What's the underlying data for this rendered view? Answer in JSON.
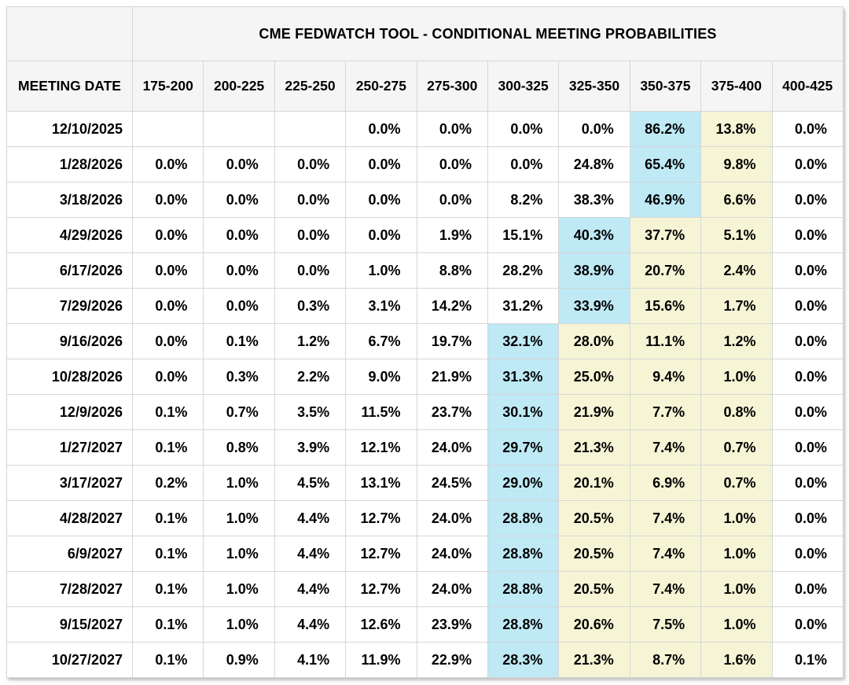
{
  "page": {
    "background": "#ffffff"
  },
  "colors": {
    "blue_highlight": "#bee9f5",
    "yellow_highlight": "#f5f5d6",
    "header_background": "#f5f5f5",
    "grid_border": "#d6d6d6",
    "text": "#000000"
  },
  "chart_data": {
    "type": "table",
    "title": "CME FEDWATCH TOOL - CONDITIONAL MEETING PROBABILITIES",
    "row_header": "MEETING DATE",
    "columns": [
      "175-200",
      "200-225",
      "225-250",
      "250-275",
      "275-300",
      "300-325",
      "325-350",
      "350-375",
      "375-400",
      "400-425"
    ],
    "value_format": "percent one decimal, null rendered blank",
    "highlight_legend": {
      "blue": "highest probability cell in row",
      "yellow": "cells right of blue cell through 375-400"
    },
    "rows": [
      {
        "date": "12/10/2025",
        "values": [
          null,
          null,
          null,
          0.0,
          0.0,
          0.0,
          0.0,
          86.2,
          13.8,
          0.0
        ],
        "highlights": {
          "blue": [
            7
          ],
          "yellow": [
            8
          ]
        }
      },
      {
        "date": "1/28/2026",
        "values": [
          0.0,
          0.0,
          0.0,
          0.0,
          0.0,
          0.0,
          24.8,
          65.4,
          9.8,
          0.0
        ],
        "highlights": {
          "blue": [
            7
          ],
          "yellow": [
            8
          ]
        }
      },
      {
        "date": "3/18/2026",
        "values": [
          0.0,
          0.0,
          0.0,
          0.0,
          0.0,
          8.2,
          38.3,
          46.9,
          6.6,
          0.0
        ],
        "highlights": {
          "blue": [
            7
          ],
          "yellow": [
            8
          ]
        }
      },
      {
        "date": "4/29/2026",
        "values": [
          0.0,
          0.0,
          0.0,
          0.0,
          1.9,
          15.1,
          40.3,
          37.7,
          5.1,
          0.0
        ],
        "highlights": {
          "blue": [
            6
          ],
          "yellow": [
            7,
            8
          ]
        }
      },
      {
        "date": "6/17/2026",
        "values": [
          0.0,
          0.0,
          0.0,
          1.0,
          8.8,
          28.2,
          38.9,
          20.7,
          2.4,
          0.0
        ],
        "highlights": {
          "blue": [
            6
          ],
          "yellow": [
            7,
            8
          ]
        }
      },
      {
        "date": "7/29/2026",
        "values": [
          0.0,
          0.0,
          0.3,
          3.1,
          14.2,
          31.2,
          33.9,
          15.6,
          1.7,
          0.0
        ],
        "highlights": {
          "blue": [
            6
          ],
          "yellow": [
            7,
            8
          ]
        }
      },
      {
        "date": "9/16/2026",
        "values": [
          0.0,
          0.1,
          1.2,
          6.7,
          19.7,
          32.1,
          28.0,
          11.1,
          1.2,
          0.0
        ],
        "highlights": {
          "blue": [
            5
          ],
          "yellow": [
            6,
            7,
            8
          ]
        }
      },
      {
        "date": "10/28/2026",
        "values": [
          0.0,
          0.3,
          2.2,
          9.0,
          21.9,
          31.3,
          25.0,
          9.4,
          1.0,
          0.0
        ],
        "highlights": {
          "blue": [
            5
          ],
          "yellow": [
            6,
            7,
            8
          ]
        }
      },
      {
        "date": "12/9/2026",
        "values": [
          0.1,
          0.7,
          3.5,
          11.5,
          23.7,
          30.1,
          21.9,
          7.7,
          0.8,
          0.0
        ],
        "highlights": {
          "blue": [
            5
          ],
          "yellow": [
            6,
            7,
            8
          ]
        }
      },
      {
        "date": "1/27/2027",
        "values": [
          0.1,
          0.8,
          3.9,
          12.1,
          24.0,
          29.7,
          21.3,
          7.4,
          0.7,
          0.0
        ],
        "highlights": {
          "blue": [
            5
          ],
          "yellow": [
            6,
            7,
            8
          ]
        }
      },
      {
        "date": "3/17/2027",
        "values": [
          0.2,
          1.0,
          4.5,
          13.1,
          24.5,
          29.0,
          20.1,
          6.9,
          0.7,
          0.0
        ],
        "highlights": {
          "blue": [
            5
          ],
          "yellow": [
            6,
            7,
            8
          ]
        }
      },
      {
        "date": "4/28/2027",
        "values": [
          0.1,
          1.0,
          4.4,
          12.7,
          24.0,
          28.8,
          20.5,
          7.4,
          1.0,
          0.0
        ],
        "highlights": {
          "blue": [
            5
          ],
          "yellow": [
            6,
            7,
            8
          ]
        }
      },
      {
        "date": "6/9/2027",
        "values": [
          0.1,
          1.0,
          4.4,
          12.7,
          24.0,
          28.8,
          20.5,
          7.4,
          1.0,
          0.0
        ],
        "highlights": {
          "blue": [
            5
          ],
          "yellow": [
            6,
            7,
            8
          ]
        }
      },
      {
        "date": "7/28/2027",
        "values": [
          0.1,
          1.0,
          4.4,
          12.7,
          24.0,
          28.8,
          20.5,
          7.4,
          1.0,
          0.0
        ],
        "highlights": {
          "blue": [
            5
          ],
          "yellow": [
            6,
            7,
            8
          ]
        }
      },
      {
        "date": "9/15/2027",
        "values": [
          0.1,
          1.0,
          4.4,
          12.6,
          23.9,
          28.8,
          20.6,
          7.5,
          1.0,
          0.0
        ],
        "highlights": {
          "blue": [
            5
          ],
          "yellow": [
            6,
            7,
            8
          ]
        }
      },
      {
        "date": "10/27/2027",
        "values": [
          0.1,
          0.9,
          4.1,
          11.9,
          22.9,
          28.3,
          21.3,
          8.7,
          1.6,
          0.1
        ],
        "highlights": {
          "blue": [
            5
          ],
          "yellow": [
            6,
            7,
            8
          ]
        }
      }
    ]
  }
}
